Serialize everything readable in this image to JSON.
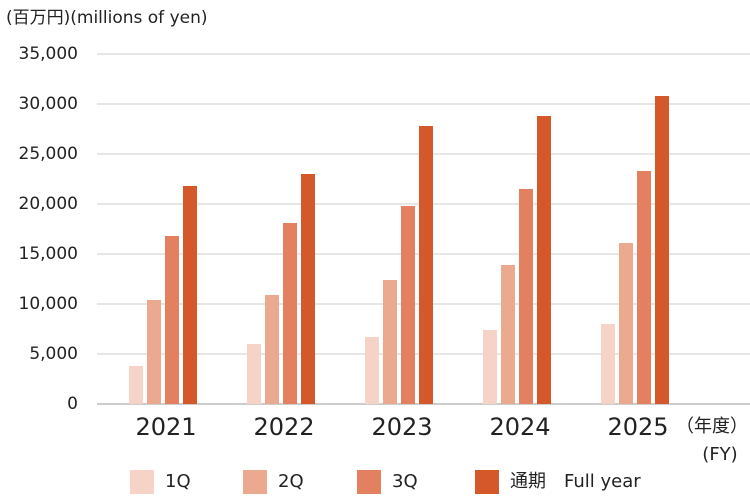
{
  "chart_data": {
    "type": "bar",
    "title": "(百万円)(millions of yen)",
    "x_label": [
      "（年度）",
      "(FY)"
    ],
    "categories": [
      "2021",
      "2022",
      "2023",
      "2024",
      "2025"
    ],
    "series": [
      {
        "name": "1Q",
        "color": "#f5d3c6",
        "values": [
          3800,
          6000,
          6700,
          7400,
          8000
        ]
      },
      {
        "name": "2Q",
        "color": "#eba98f",
        "values": [
          10400,
          10900,
          12400,
          13900,
          16100
        ]
      },
      {
        "name": "3Q",
        "color": "#e28060",
        "values": [
          16800,
          18100,
          19800,
          21500,
          23300
        ]
      },
      {
        "name": "通期　Full year",
        "color": "#d4582a",
        "values": [
          21800,
          23000,
          27800,
          28800,
          30800
        ]
      }
    ],
    "ylim": [
      0,
      35000
    ],
    "yticks": [
      0,
      {
        "value": 5000,
        "label": "5,000"
      },
      {
        "value": 10000,
        "label": "10,000"
      },
      {
        "value": 15000,
        "label": "15,000"
      },
      {
        "value": 20000,
        "label": "20,000"
      },
      {
        "value": 25000,
        "label": "25,000"
      },
      {
        "value": 30000,
        "label": "30,000"
      },
      {
        "value": 35000,
        "label": "35,000"
      }
    ],
    "grid": true
  }
}
